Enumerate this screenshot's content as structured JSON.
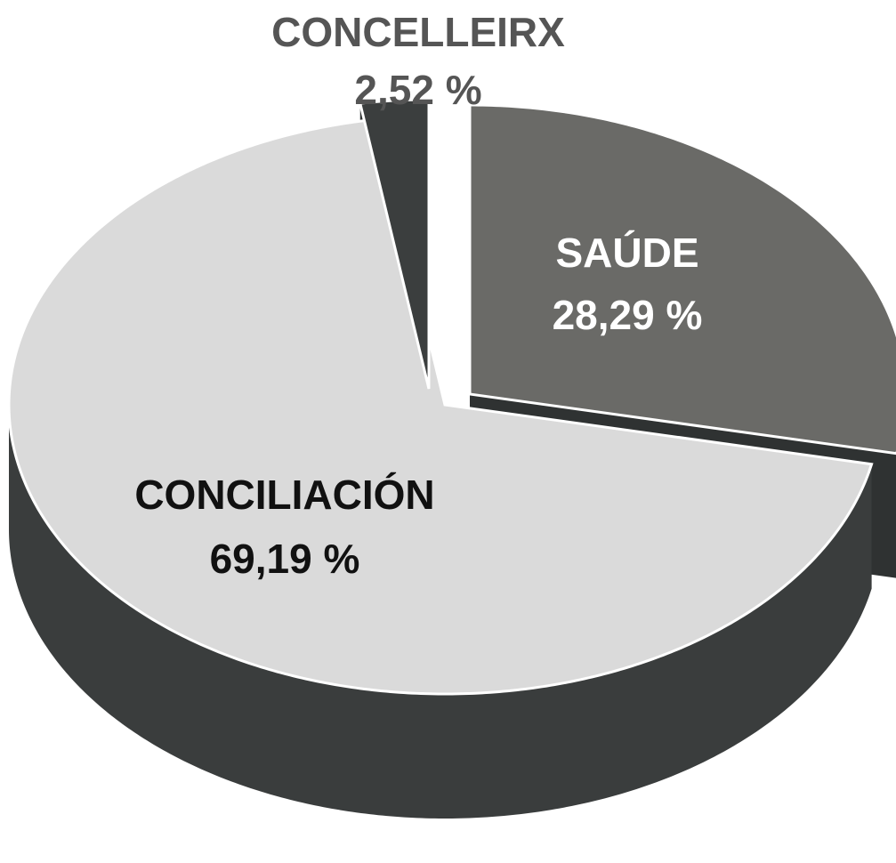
{
  "chart_data": {
    "type": "pie",
    "categories": [
      "CONCELLEIRX",
      "SAÚDE",
      "CONCILIACIÓN"
    ],
    "values": [
      2.52,
      28.29,
      69.19
    ],
    "value_labels": [
      "2,52 %",
      "28,29 %",
      "69,19 %"
    ],
    "colors": [
      "#3b3e3e",
      "#6a6a67",
      "#dadada"
    ]
  }
}
